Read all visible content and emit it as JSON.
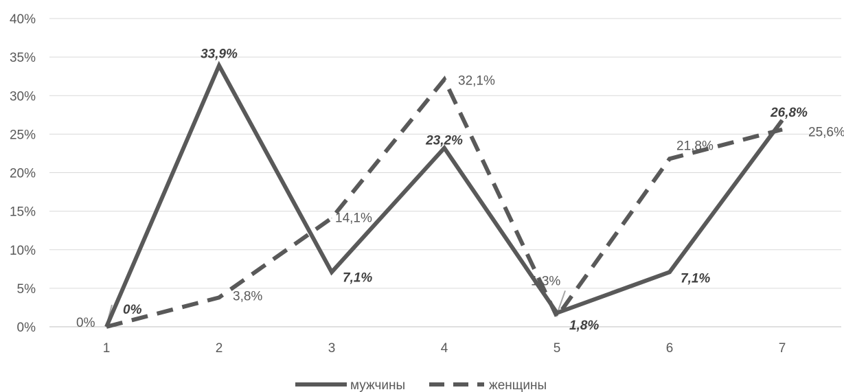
{
  "chart_data": {
    "type": "line",
    "categories": [
      "1",
      "2",
      "3",
      "4",
      "5",
      "6",
      "7"
    ],
    "ylim": [
      0,
      40
    ],
    "yticks": [
      "0%",
      "5%",
      "10%",
      "15%",
      "20%",
      "25%",
      "30%",
      "35%",
      "40%"
    ],
    "grid": true,
    "legend_position": "bottom",
    "series": [
      {
        "name": "мужчины",
        "style": "solid",
        "color": "#595959",
        "values": [
          0,
          33.9,
          7.1,
          23.2,
          1.8,
          7.1,
          26.8
        ],
        "labels": [
          "0%",
          "33,9%",
          "7,1%",
          "23,2%",
          "1,8%",
          "7,1%",
          "26,8%"
        ]
      },
      {
        "name": "женщины",
        "style": "dashed",
        "color": "#595959",
        "values": [
          0,
          3.8,
          14.1,
          32.1,
          1.3,
          21.8,
          25.6
        ],
        "labels": [
          "0%",
          "3,8%",
          "14,1%",
          "32,1%",
          "1,3%",
          "21,8%",
          "25,6%"
        ]
      }
    ]
  }
}
